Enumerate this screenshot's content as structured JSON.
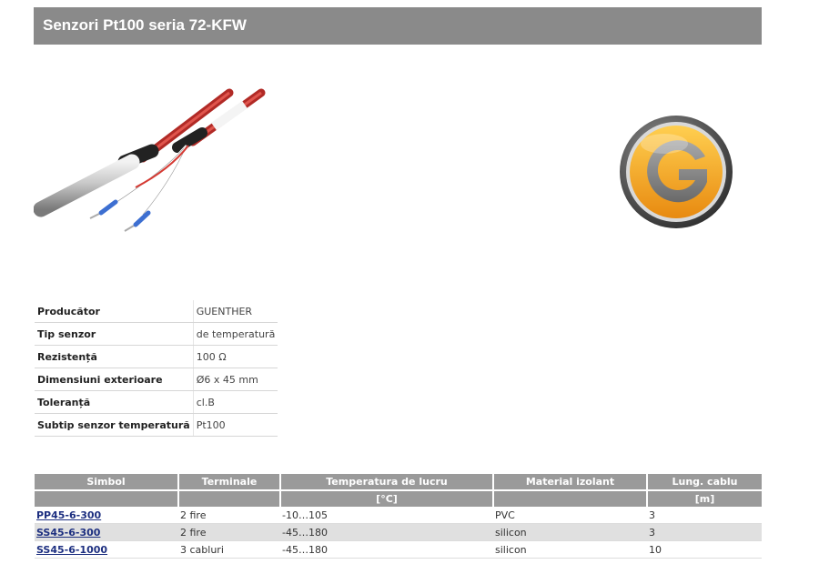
{
  "page": {
    "title": "Senzori Pt100 seria 72-KFW"
  },
  "specs": [
    {
      "label": "Producător",
      "value": "GUENTHER"
    },
    {
      "label": "Tip senzor",
      "value": "de temperatură"
    },
    {
      "label": "Rezistență",
      "value": "100 Ω"
    },
    {
      "label": "Dimensiuni exterioare",
      "value": "Ø6 x 45 mm"
    },
    {
      "label": "Toleranță",
      "value": "cl.B"
    },
    {
      "label": "Subtip senzor temperatură",
      "value": "Pt100"
    }
  ],
  "table": {
    "headers": [
      "Simbol",
      "Terminale",
      "Temperatura de lucru",
      "Material izolant",
      "Lung. cablu"
    ],
    "units": [
      "",
      "",
      "[°C]",
      "",
      "[m]"
    ],
    "rows": [
      [
        "PP45-6-300",
        "2 fire",
        "-10…105",
        "PVC",
        "3"
      ],
      [
        "SS45-6-300",
        "2 fire",
        "-45…180",
        "silicon",
        "3"
      ],
      [
        "SS45-6-1000",
        "3 cabluri",
        "-45…180",
        "silicon",
        "10"
      ]
    ]
  },
  "colors": {
    "title_bar": "#8a8a8a",
    "table_header": "#9a9a9a",
    "link": "#1d2f80",
    "logo_orange": "#f5a01a"
  },
  "icons": {
    "product": "pt100-sensor-photo",
    "logo": "guenther-logo"
  }
}
